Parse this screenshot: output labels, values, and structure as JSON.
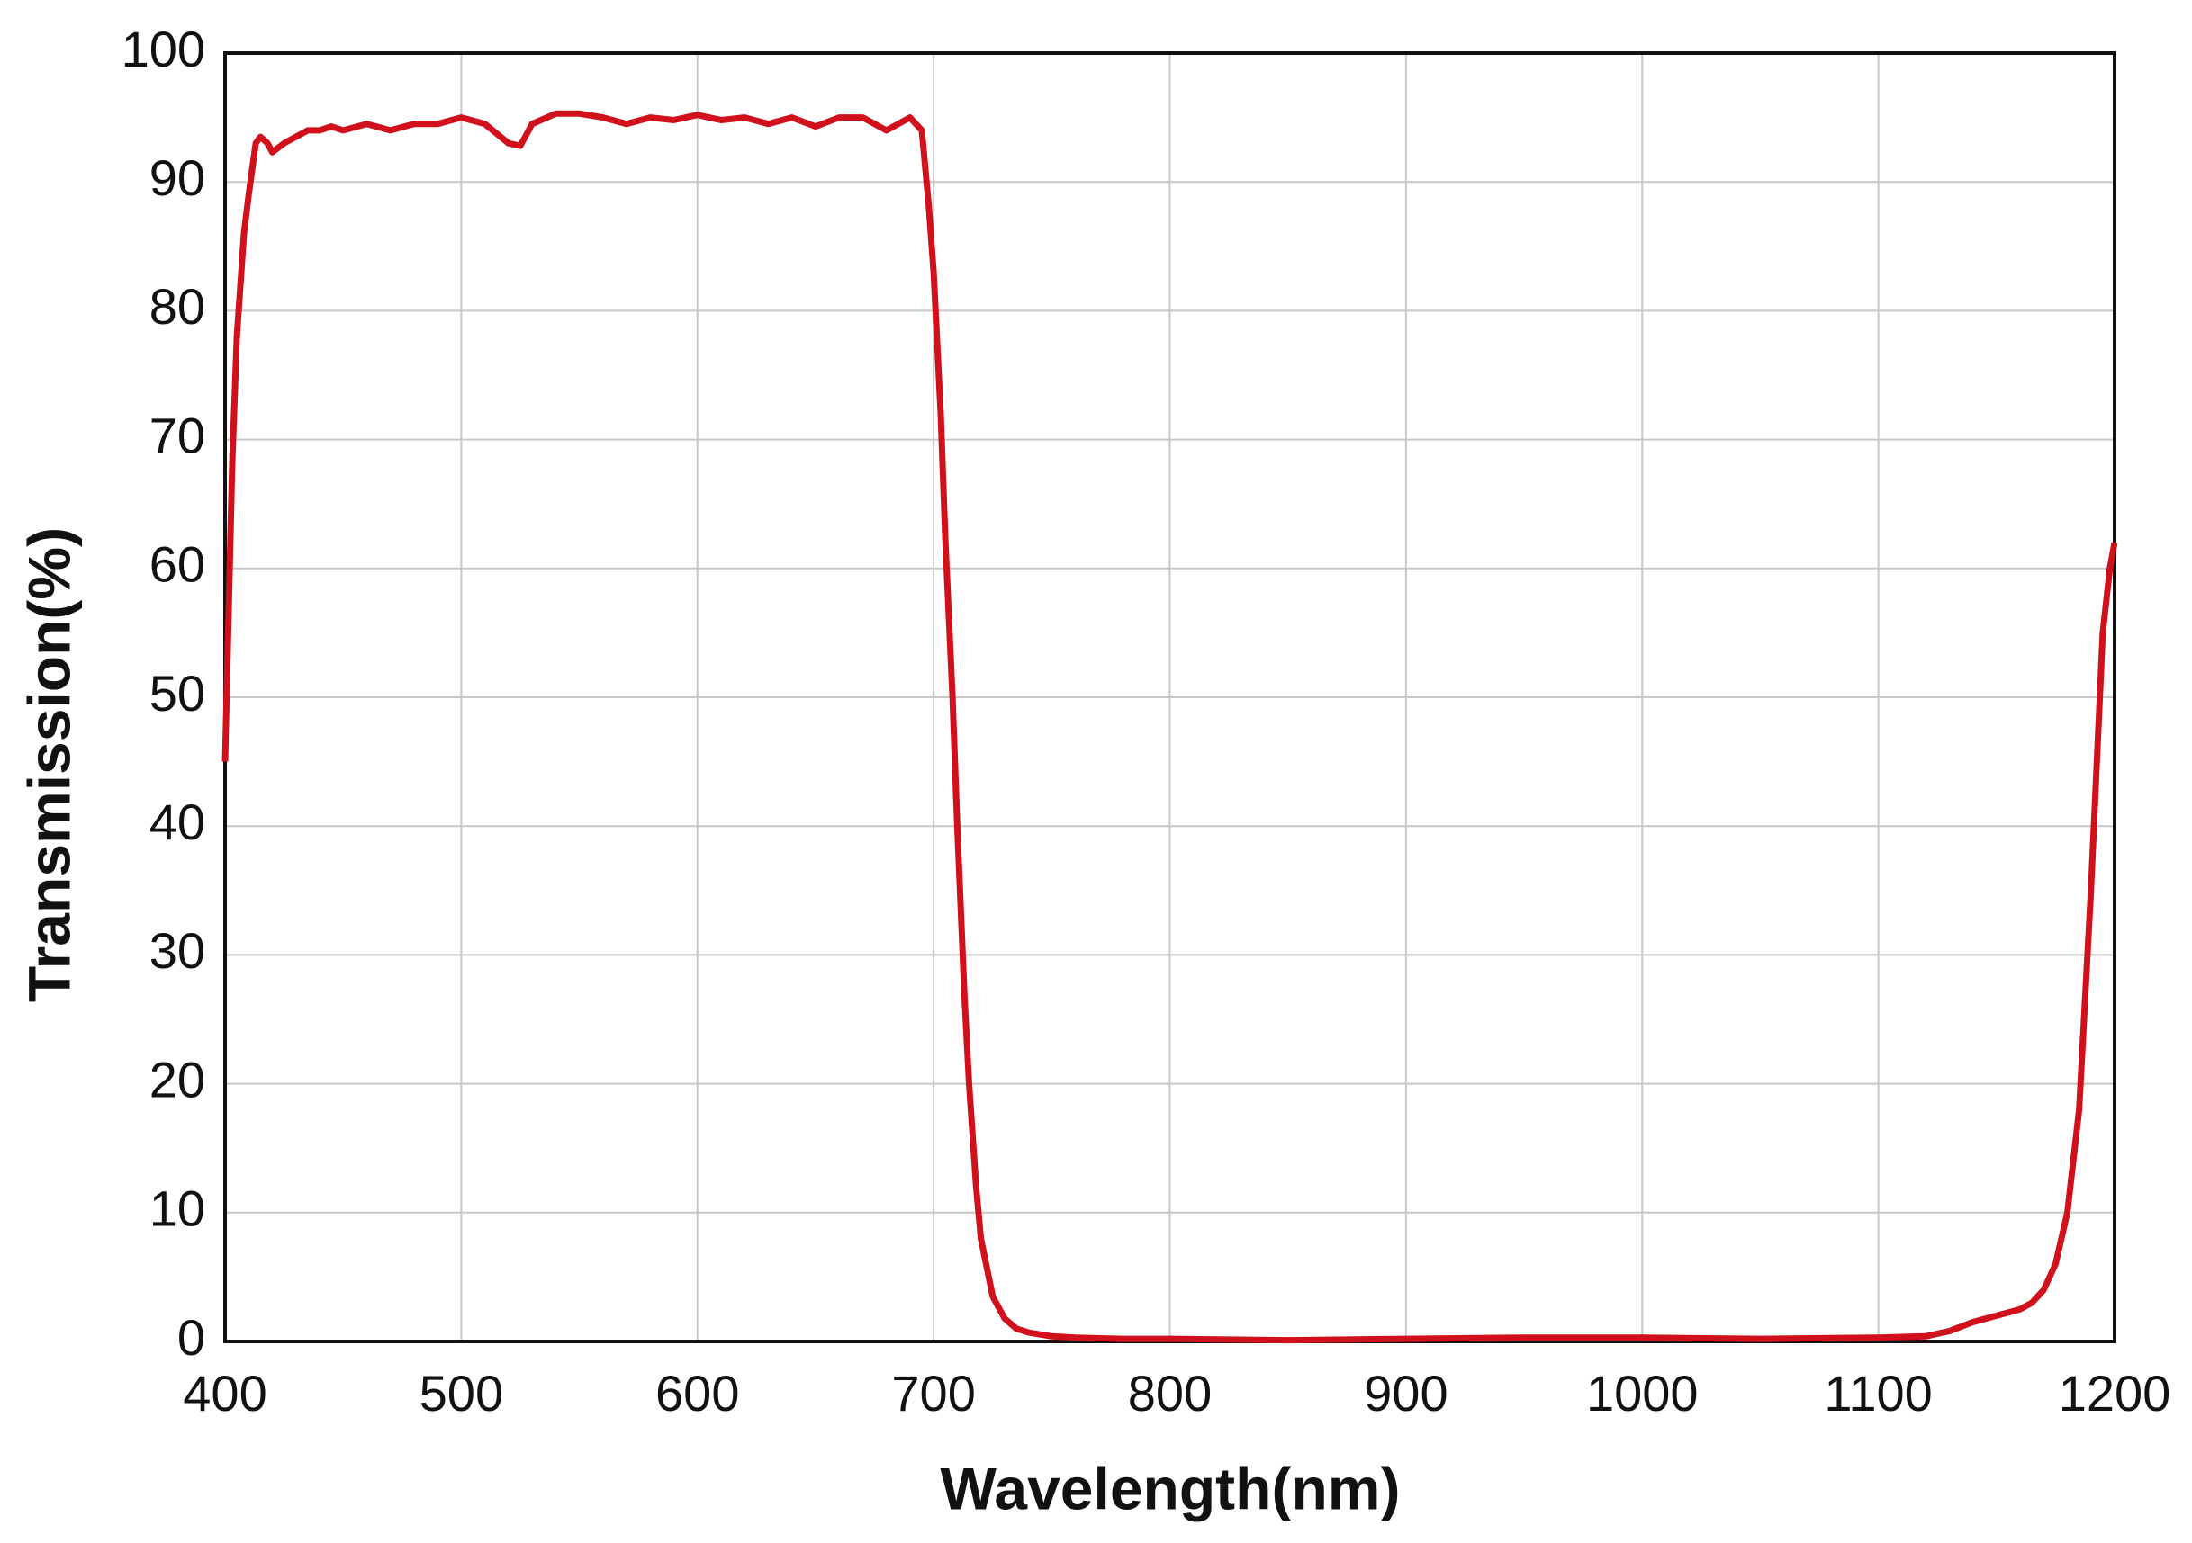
{
  "chart_data": {
    "type": "line",
    "x_label": "Wavelength(nm)",
    "y_label": "Transmission(%)",
    "xlim": [
      400,
      1200
    ],
    "xticks": [
      400,
      500,
      600,
      700,
      800,
      900,
      1000,
      1100,
      1200
    ],
    "ylim": [
      0,
      100
    ],
    "yticks": [
      0,
      10,
      20,
      30,
      40,
      50,
      60,
      70,
      80,
      90,
      100
    ],
    "grid": true,
    "x": [
      400,
      403,
      405,
      408,
      410,
      413,
      415,
      418,
      420,
      425,
      430,
      435,
      440,
      445,
      450,
      460,
      470,
      480,
      490,
      500,
      510,
      520,
      525,
      530,
      540,
      550,
      560,
      570,
      580,
      590,
      600,
      610,
      620,
      630,
      640,
      650,
      660,
      670,
      680,
      690,
      695,
      698,
      700,
      703,
      705,
      708,
      710,
      713,
      715,
      718,
      720,
      725,
      730,
      735,
      740,
      750,
      760,
      780,
      800,
      850,
      900,
      950,
      1000,
      1050,
      1100,
      1120,
      1130,
      1140,
      1150,
      1160,
      1165,
      1170,
      1175,
      1180,
      1185,
      1190,
      1195,
      1198,
      1200
    ],
    "series": [
      {
        "color": "#d0101a",
        "values": [
          45,
          68,
          78,
          86,
          89,
          93,
          93.5,
          93,
          92.3,
          93,
          93.5,
          94,
          94,
          94.3,
          94,
          94.5,
          94,
          94.5,
          94.5,
          95,
          94.5,
          93,
          92.8,
          94.5,
          95.3,
          95.3,
          95,
          94.5,
          95,
          94.8,
          95.2,
          94.8,
          95,
          94.5,
          95,
          94.3,
          95,
          95,
          94,
          95,
          94,
          88,
          83,
          72,
          62,
          50,
          40,
          27,
          20,
          12,
          8,
          3.5,
          1.8,
          1,
          0.7,
          0.4,
          0.3,
          0.2,
          0.2,
          0.1,
          0.2,
          0.3,
          0.3,
          0.2,
          0.3,
          0.4,
          0.8,
          1.5,
          2,
          2.5,
          3,
          4,
          6,
          10,
          18,
          35,
          55,
          60,
          62
        ]
      }
    ]
  }
}
